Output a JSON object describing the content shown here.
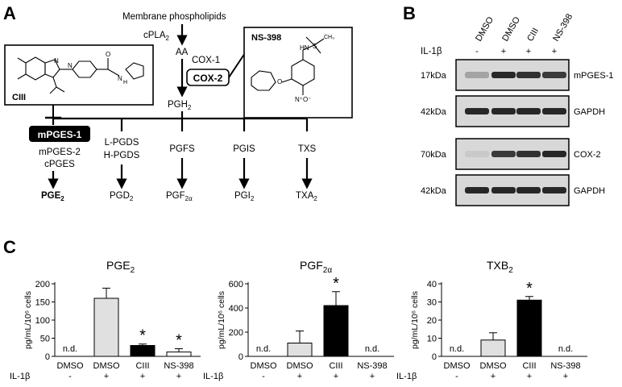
{
  "panels": {
    "a": "A",
    "b": "B",
    "c": "C"
  },
  "pathway": {
    "membrane": "Membrane  phospholipids",
    "cpla2": "cPLA",
    "cpla2_sub": "2",
    "aa": "AA",
    "cox1": "COX-1",
    "cox2": "COX-2",
    "pgh2": "PGH",
    "pgh2_sub": "2",
    "mpges1": "mPGES-1",
    "mpges2": "mPGES-2",
    "cpges": "cPGES",
    "pge2": "PGE",
    "pge2_sub": "2",
    "lpgds": "L-PGDS",
    "hpgds": "H-PGDS",
    "pgd2": "PGD",
    "pgd2_sub": "2",
    "pgfs": "PGFS",
    "pgf2a": "PGF",
    "pgf2a_sub": "2α",
    "pgis": "PGIS",
    "pgi2": "PGI",
    "pgi2_sub": "2",
    "txs": "TXS",
    "txa2": "TXA",
    "txa2_sub": "2",
    "ciii": "CIII",
    "ns398": "NS-398"
  },
  "blot": {
    "lanes": [
      "DMSO",
      "DMSO",
      "CIII",
      "NS-398"
    ],
    "il1b_label": "IL-1β",
    "il1b_signs": [
      "-",
      "+",
      "+",
      "+"
    ],
    "rows": [
      {
        "size": "17kDa",
        "target": "mPGES-1",
        "intensity": [
          0.25,
          0.9,
          0.85,
          0.8
        ]
      },
      {
        "size": "42kDa",
        "target": "GAPDH",
        "intensity": [
          0.9,
          0.9,
          0.9,
          0.9
        ]
      },
      {
        "size": "70kDa",
        "target": "COX-2",
        "intensity": [
          0.05,
          0.8,
          0.85,
          0.9
        ]
      },
      {
        "size": "42kDa",
        "target": "GAPDH",
        "intensity": [
          0.9,
          0.9,
          0.9,
          0.9
        ]
      }
    ]
  },
  "chart_data": [
    {
      "type": "bar",
      "title": "PGE",
      "title_sub": "2",
      "ylabel": "pg/mL/10⁶ cells",
      "ylim": [
        0,
        200
      ],
      "yticks": [
        0,
        50,
        100,
        150,
        200
      ],
      "categories": [
        "DMSO",
        "DMSO",
        "CIII",
        "NS-398"
      ],
      "il1b": [
        "-",
        "+",
        "+",
        "+"
      ],
      "values": [
        null,
        160,
        30,
        12
      ],
      "errors": [
        null,
        28,
        4,
        9
      ],
      "labels": [
        "n.d.",
        "",
        "*",
        "*"
      ],
      "colors": [
        "#ffffff",
        "#e0e0e0",
        "#000000",
        "#ffffff"
      ]
    },
    {
      "type": "bar",
      "title": "PGF",
      "title_sub": "2α",
      "ylabel": "pg/mL/10⁶ cells",
      "ylim": [
        0,
        600
      ],
      "yticks": [
        0,
        200,
        400,
        600
      ],
      "categories": [
        "DMSO",
        "DMSO",
        "CIII",
        "NS-398"
      ],
      "il1b": [
        "-",
        "+",
        "+",
        "+"
      ],
      "values": [
        null,
        110,
        420,
        null
      ],
      "errors": [
        null,
        100,
        115,
        null
      ],
      "labels": [
        "n.d.",
        "",
        "*",
        "n.d."
      ],
      "colors": [
        "#ffffff",
        "#e0e0e0",
        "#000000",
        "#ffffff"
      ]
    },
    {
      "type": "bar",
      "title": "TXB",
      "title_sub": "2",
      "ylabel": "pg/mL/10⁶ cells",
      "ylim": [
        0,
        40
      ],
      "yticks": [
        0,
        10,
        20,
        30,
        40
      ],
      "categories": [
        "DMSO",
        "DMSO",
        "CIII",
        "NS-398"
      ],
      "il1b": [
        "-",
        "+",
        "+",
        "+"
      ],
      "values": [
        null,
        9,
        31,
        null
      ],
      "errors": [
        null,
        4,
        2,
        null
      ],
      "labels": [
        "n.d.",
        "",
        "*",
        "n.d."
      ],
      "colors": [
        "#ffffff",
        "#e0e0e0",
        "#000000",
        "#ffffff"
      ]
    }
  ],
  "il1b_row_label": "IL-1β"
}
